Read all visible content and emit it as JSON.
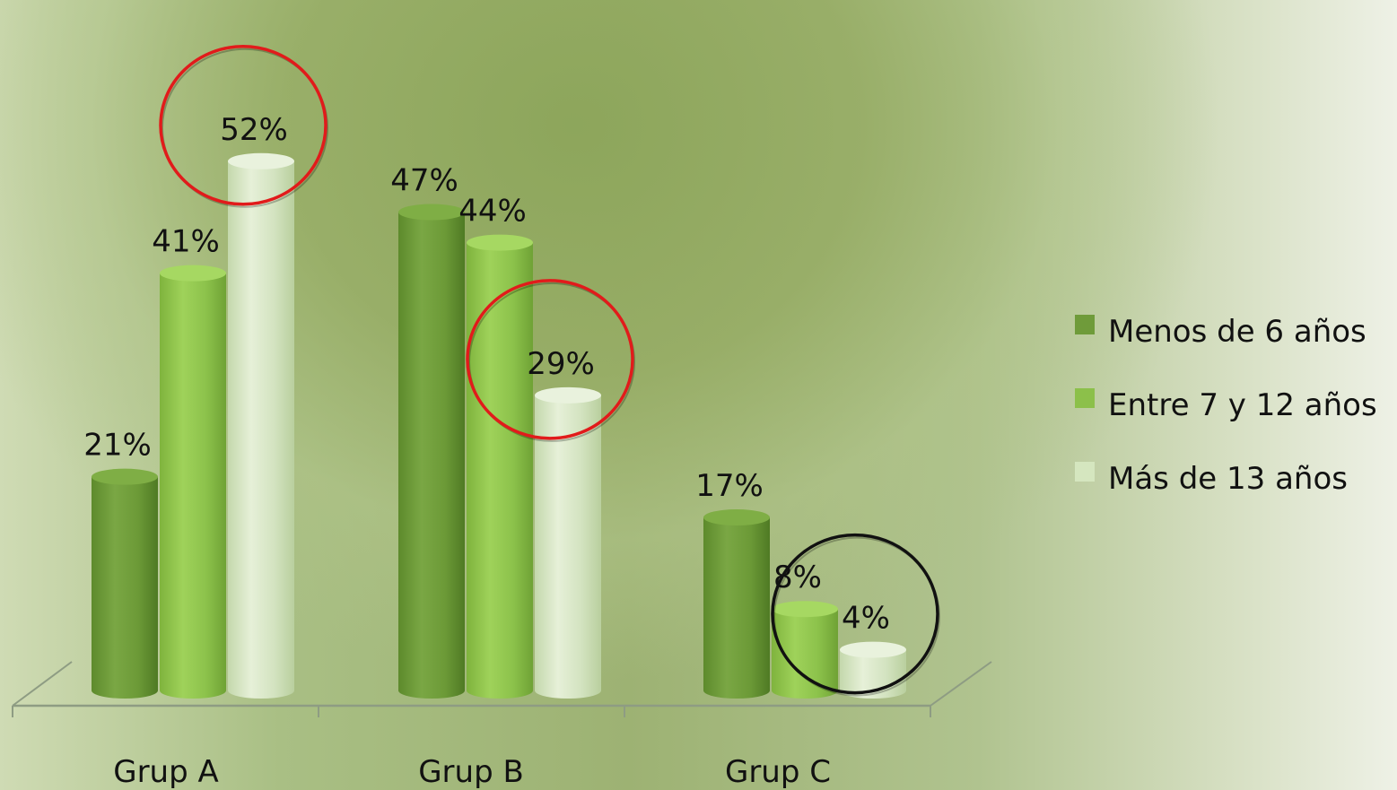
{
  "chart_data": {
    "type": "bar",
    "categories": [
      "Grup A",
      "Grup B",
      "Grup C"
    ],
    "series": [
      {
        "name": "Menos de 6 años",
        "values": [
          21,
          47,
          17
        ],
        "labels": [
          "21%",
          "47%",
          "17%"
        ]
      },
      {
        "name": "Entre 7 y 12 años",
        "values": [
          41,
          44,
          8
        ],
        "labels": [
          "41%",
          "44%",
          "8%"
        ]
      },
      {
        "name": "Más de 13 años",
        "values": [
          52,
          29,
          4
        ],
        "labels": [
          "52%",
          "29%",
          "4%"
        ]
      }
    ],
    "ylim": [
      0,
      60
    ],
    "grid": false,
    "legend_position": "right",
    "style": "3d-cylinder",
    "colors": {
      "series": [
        "#6f9b3a",
        "#8cc04a",
        "#d5e6bf"
      ],
      "highlight_red": "#e11b1b",
      "highlight_black": "#111111"
    },
    "highlights": [
      {
        "category": "Grup A",
        "series": "Más de 13 años",
        "color": "red"
      },
      {
        "category": "Grup B",
        "series": "Más de 13 años",
        "color": "red"
      },
      {
        "category": "Grup C",
        "series": "Más de 13 años",
        "color": "black"
      }
    ]
  }
}
